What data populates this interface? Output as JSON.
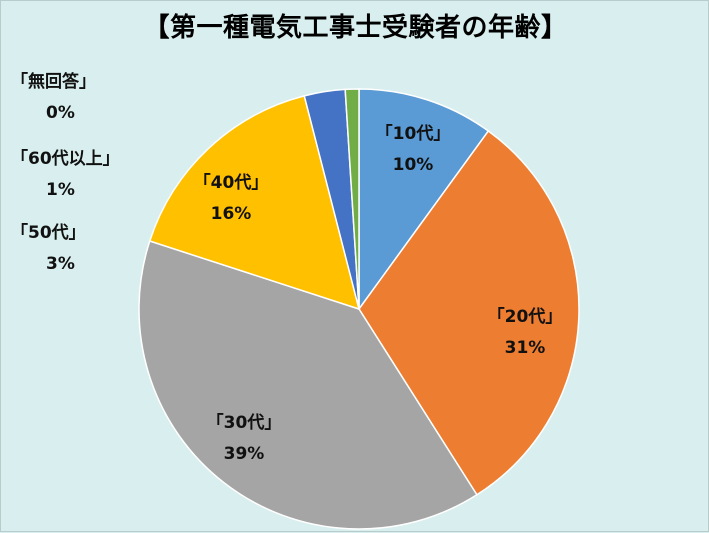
{
  "chart_data": {
    "type": "pie",
    "title": "【第一種電気工事士受験者の年齢】",
    "slices": [
      {
        "label": "「10代」",
        "value": 10,
        "pct_label": "10%",
        "color": "#5b9bd5"
      },
      {
        "label": "「20代」",
        "value": 31,
        "pct_label": "31%",
        "color": "#ed7d31"
      },
      {
        "label": "「30代」",
        "value": 39,
        "pct_label": "39%",
        "color": "#a5a5a5"
      },
      {
        "label": "「40代」",
        "value": 16,
        "pct_label": "16%",
        "color": "#ffc000"
      },
      {
        "label": "「50代」",
        "value": 3,
        "pct_label": "3%",
        "color": "#4472c4"
      },
      {
        "label": "「60代以上」",
        "value": 1,
        "pct_label": "1%",
        "color": "#70ad47"
      },
      {
        "label": "「無回答」",
        "value": 0,
        "pct_label": "0%",
        "color": "#264478"
      }
    ],
    "legend": "none"
  }
}
